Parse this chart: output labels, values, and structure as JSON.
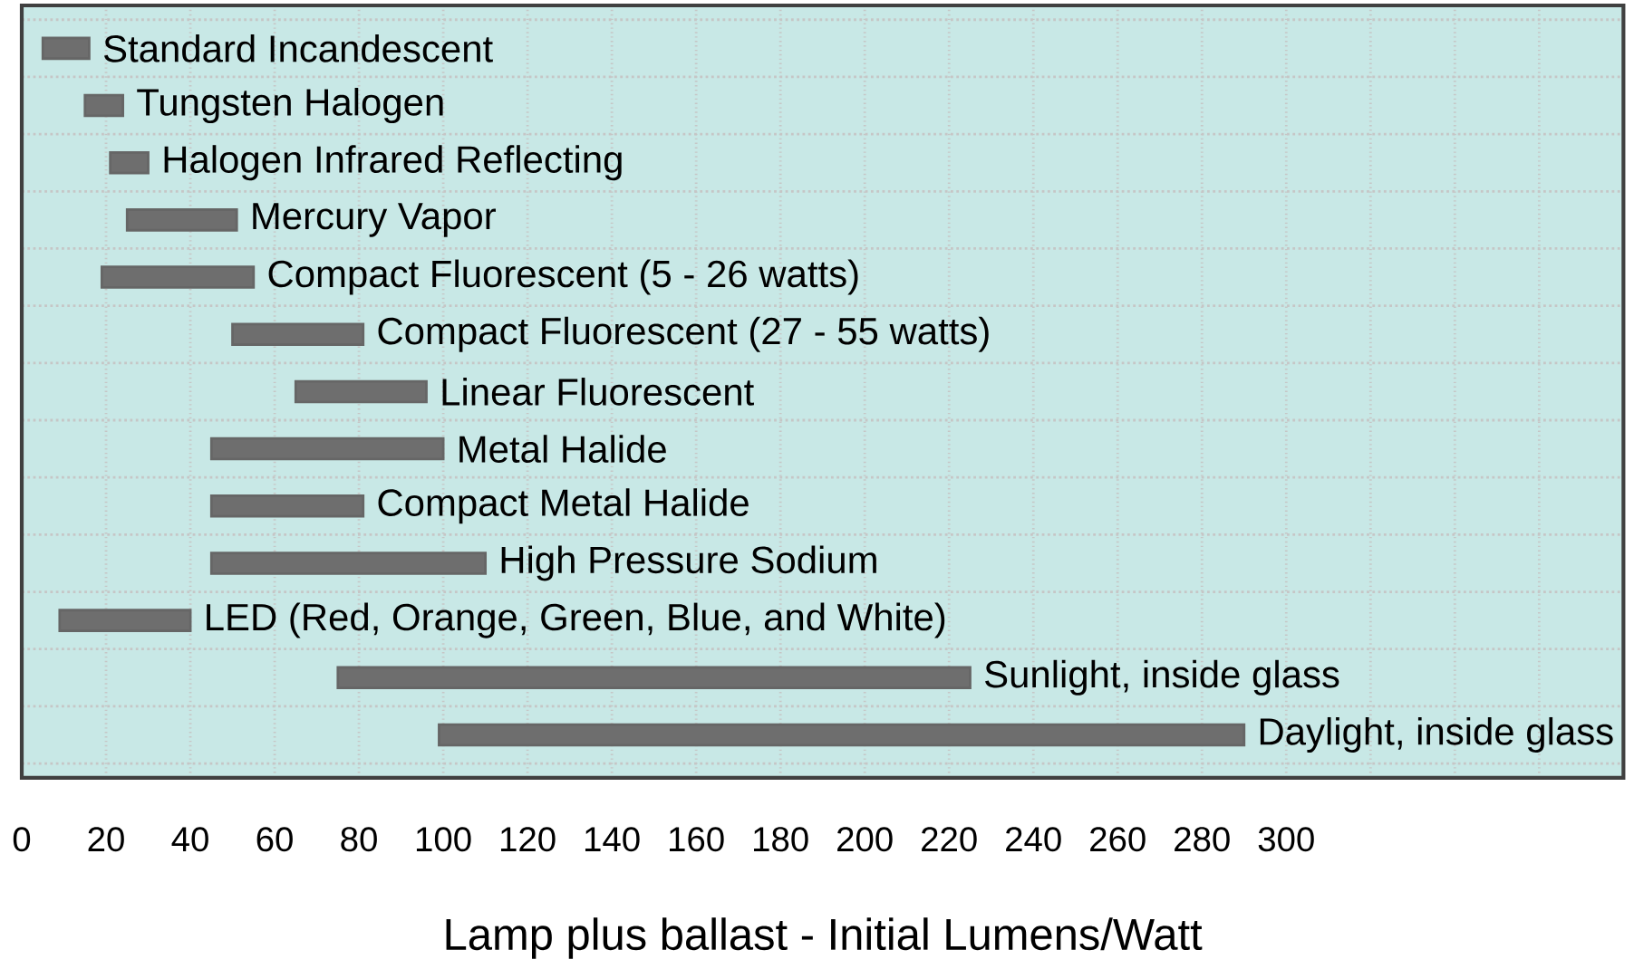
{
  "chart_data": {
    "type": "bar",
    "orientation": "horizontal",
    "xlabel": "Lamp plus ballast - Initial Lumens/Watt",
    "categories": [
      "Standard Incandescent",
      "Tungsten Halogen",
      "Halogen Infrared Reflecting",
      "Mercury Vapor",
      "Compact Fluorescent (5 - 26 watts)",
      "Compact Fluorescent (27 - 55 watts)",
      "Linear Fluorescent",
      "Metal Halide",
      "Compact Metal Halide",
      "High Pressure Sodium",
      "LED (Red, Orange, Green, Blue, and White)",
      "Sunlight, inside glass",
      "Daylight, inside glass"
    ],
    "base": [
      5,
      15,
      21,
      25,
      19,
      50,
      65,
      45,
      45,
      45,
      9,
      75,
      99
    ],
    "values": [
      11,
      9,
      9,
      26,
      36,
      31,
      31,
      55,
      36,
      65,
      31,
      150,
      191
    ],
    "color": "#6e6e6e",
    "xlim": [
      0,
      380
    ],
    "xticks": [
      0,
      20,
      40,
      60,
      80,
      100,
      120,
      140,
      160,
      180,
      200,
      220,
      240,
      260,
      280,
      300,
      {
        "value": 320,
        "label": null
      },
      {
        "value": 340,
        "label": null
      },
      {
        "value": 360,
        "label": null
      },
      {
        "value": 380,
        "label": null
      }
    ],
    "grid": true,
    "tick_labels": "x"
  }
}
